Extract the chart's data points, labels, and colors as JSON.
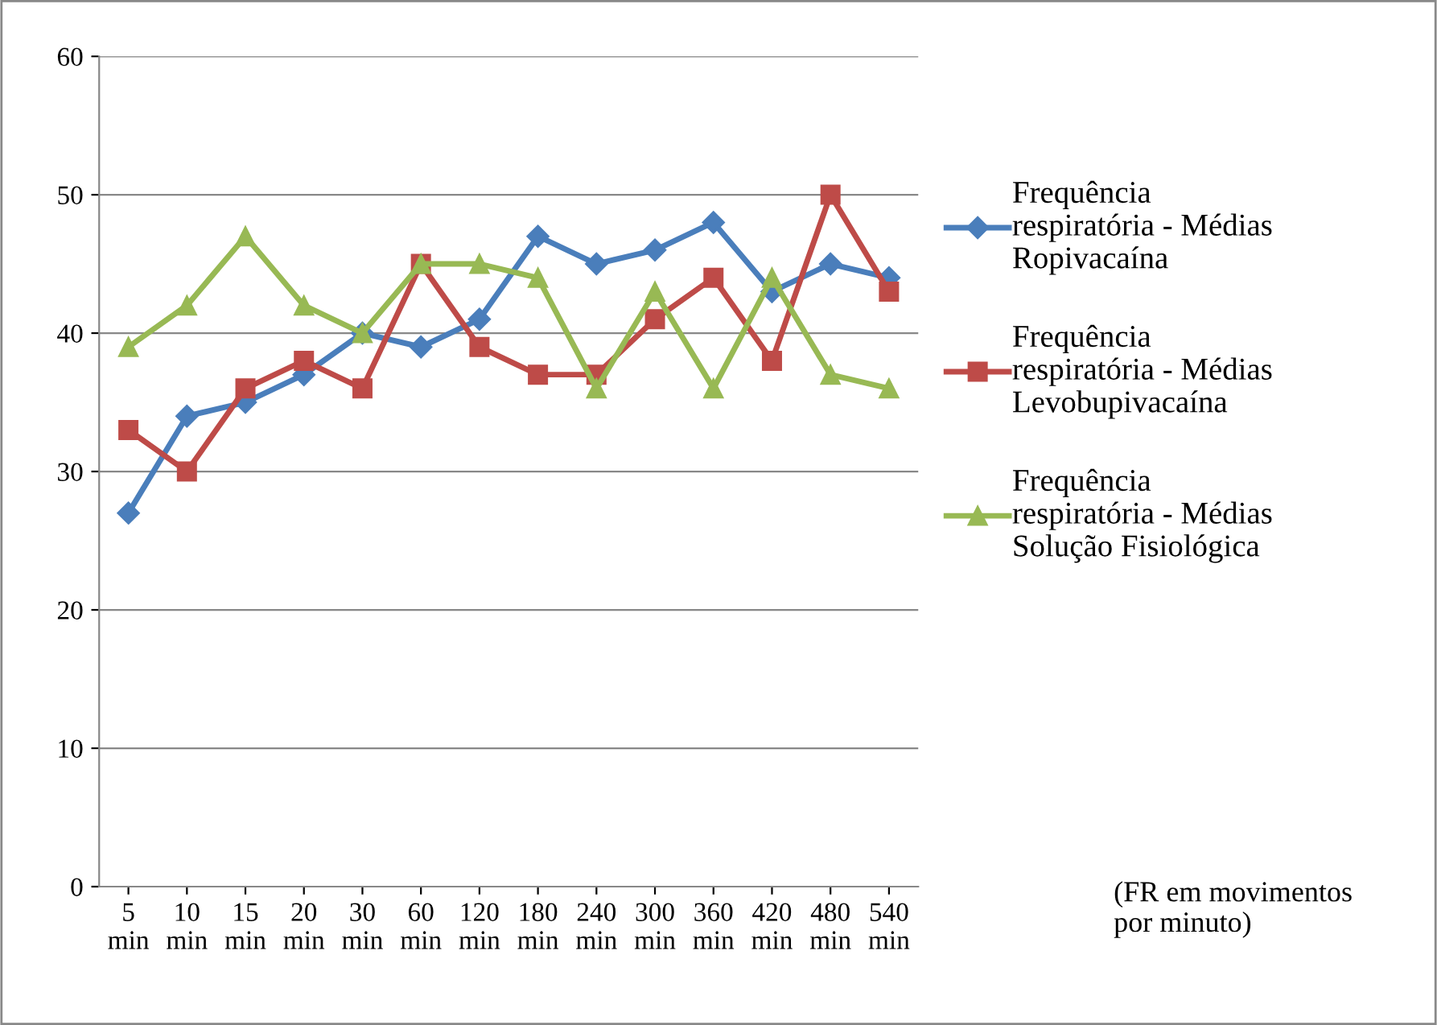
{
  "chart_data": {
    "type": "line",
    "categories": [
      "5\nmin",
      "10\nmin",
      "15\nmin",
      "20\nmin",
      "30\nmin",
      "60\nmin",
      "120\nmin",
      "180\nmin",
      "240\nmin",
      "300\nmin",
      "360\nmin",
      "420\nmin",
      "480\nmin",
      "540\nmin"
    ],
    "series": [
      {
        "name": "Frequência\nrespiratória - Médias\nRopivacaína",
        "color": "#4a7ebb",
        "marker": "diamond",
        "values": [
          27,
          34,
          35,
          37,
          40,
          39,
          41,
          47,
          45,
          46,
          48,
          43,
          45,
          44
        ]
      },
      {
        "name": "Frequência\nrespiratória - Médias\nLevobupivacaína",
        "color": "#be4b48",
        "marker": "square",
        "values": [
          33,
          30,
          36,
          38,
          36,
          45,
          39,
          37,
          37,
          41,
          44,
          38,
          50,
          43
        ]
      },
      {
        "name": "Frequência\nrespiratória - Médias\nSolução Fisiológica",
        "color": "#98b954",
        "marker": "triangle",
        "values": [
          39,
          42,
          47,
          42,
          40,
          45,
          45,
          44,
          36,
          43,
          36,
          44,
          37,
          36
        ]
      }
    ],
    "ylim": [
      0,
      60
    ],
    "yticks": [
      0,
      10,
      20,
      30,
      40,
      50,
      60
    ],
    "grid": "y",
    "legend": "right",
    "annotations": [
      "(FR em movimentos\npor minuto)"
    ]
  }
}
